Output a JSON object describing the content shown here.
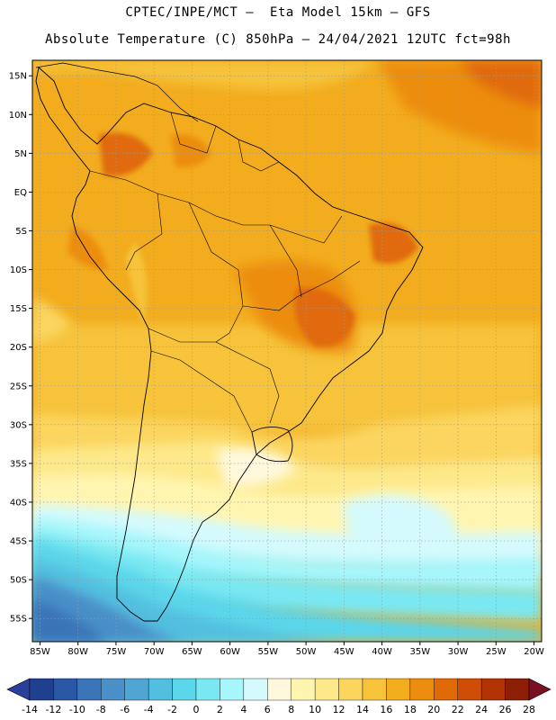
{
  "header": {
    "title_line1": "CPTEC/INPE/MCT –  Eta Model 15km – GFS",
    "title_line2": "Absolute Temperature (C) 850hPa – 24/04/2021 12UTC fct=98h"
  },
  "map": {
    "lon_range": [
      -86,
      -19
    ],
    "lat_range": [
      -58,
      17
    ],
    "lat_ticks": [
      {
        "value": 15,
        "label": "15N"
      },
      {
        "value": 10,
        "label": "10N"
      },
      {
        "value": 5,
        "label": "5N"
      },
      {
        "value": 0,
        "label": "EQ"
      },
      {
        "value": -5,
        "label": "5S"
      },
      {
        "value": -10,
        "label": "10S"
      },
      {
        "value": -15,
        "label": "15S"
      },
      {
        "value": -20,
        "label": "20S"
      },
      {
        "value": -25,
        "label": "25S"
      },
      {
        "value": -30,
        "label": "30S"
      },
      {
        "value": -35,
        "label": "35S"
      },
      {
        "value": -40,
        "label": "40S"
      },
      {
        "value": -45,
        "label": "45S"
      },
      {
        "value": -50,
        "label": "50S"
      },
      {
        "value": -55,
        "label": "55S"
      }
    ],
    "lon_ticks": [
      {
        "value": -85,
        "label": "85W"
      },
      {
        "value": -80,
        "label": "80W"
      },
      {
        "value": -75,
        "label": "75W"
      },
      {
        "value": -70,
        "label": "70W"
      },
      {
        "value": -65,
        "label": "65W"
      },
      {
        "value": -60,
        "label": "60W"
      },
      {
        "value": -55,
        "label": "55W"
      },
      {
        "value": -50,
        "label": "50W"
      },
      {
        "value": -45,
        "label": "45W"
      },
      {
        "value": -40,
        "label": "40W"
      },
      {
        "value": -35,
        "label": "35W"
      },
      {
        "value": -30,
        "label": "30W"
      },
      {
        "value": -25,
        "label": "25W"
      },
      {
        "value": -20,
        "label": "20W"
      }
    ]
  },
  "colorbar": {
    "labels": [
      "-14",
      "-12",
      "-10",
      "-8",
      "-6",
      "-4",
      "-2",
      "0",
      "2",
      "4",
      "6",
      "8",
      "10",
      "12",
      "14",
      "16",
      "18",
      "20",
      "22",
      "24",
      "26",
      "28"
    ],
    "colors": [
      "#1f3f8f",
      "#2b58a6",
      "#3b74b8",
      "#4a8fc7",
      "#4fa6d2",
      "#52bfe0",
      "#5bd6ea",
      "#7ae8f2",
      "#a6f6fb",
      "#d4fafd",
      "#fff8dc",
      "#fff5b0",
      "#fde98a",
      "#fbd55e",
      "#f6c33a",
      "#f2ac1e",
      "#ec8d10",
      "#e06a08",
      "#cf4d05",
      "#b43304",
      "#8d1f06"
    ],
    "low_color": "#2a3f9a",
    "high_color": "#7a1020"
  }
}
